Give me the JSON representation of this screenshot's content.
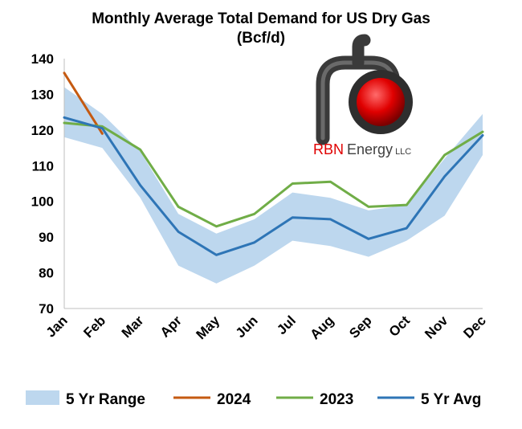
{
  "chart_data": {
    "type": "line",
    "title": "Monthly Average Total Demand for US Dry Gas",
    "subtitle": "(Bcf/d)",
    "categories": [
      "Jan",
      "Feb",
      "Mar",
      "Apr",
      "May",
      "Jun",
      "Jul",
      "Aug",
      "Sep",
      "Oct",
      "Nov",
      "Dec"
    ],
    "ylim": [
      70,
      140
    ],
    "yticks": [
      70,
      80,
      90,
      100,
      110,
      120,
      130,
      140
    ],
    "grid": false,
    "legend_position": "bottom",
    "range": {
      "name": "5 Yr Range",
      "color": "#bdd7ee",
      "low": [
        118,
        115,
        101,
        82,
        77,
        82,
        89,
        87.5,
        84.5,
        89,
        96,
        113
      ],
      "high": [
        132,
        124.5,
        114,
        96.5,
        91,
        95,
        102.5,
        101,
        97.5,
        99,
        112,
        124.5
      ]
    },
    "series": [
      {
        "name": "2024",
        "color": "#c55a11",
        "values": [
          136,
          119,
          null,
          null,
          null,
          null,
          null,
          null,
          null,
          null,
          null,
          null
        ]
      },
      {
        "name": "2023",
        "color": "#70ad47",
        "values": [
          122,
          121,
          114.5,
          98.5,
          93,
          96.5,
          105,
          105.5,
          98.5,
          99,
          113,
          119.5
        ]
      },
      {
        "name": "5 Yr Avg",
        "color": "#2e75b6",
        "values": [
          123.5,
          120.5,
          104.5,
          91.5,
          85,
          88.5,
          95.5,
          95,
          89.5,
          92.5,
          107,
          118.5
        ]
      }
    ]
  },
  "logo": {
    "text_red": "RBN",
    "text_dark": "Energy",
    "text_small": "LLC"
  }
}
